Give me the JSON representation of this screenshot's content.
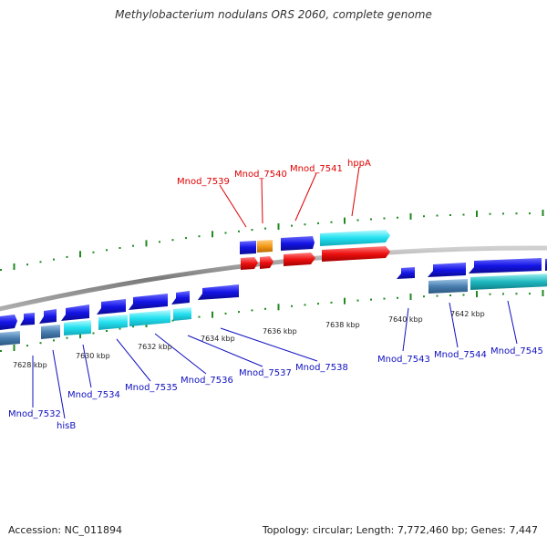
{
  "title": "Methylobacterium nodulans ORS 2060, complete genome",
  "footer": {
    "accession": "Accession: NC_011894",
    "info": "Topology: circular; Length: 7,772,460 bp; Genes: 7,447"
  },
  "colors": {
    "backbone": "#8a8a8a",
    "tick": "#1f8a1f",
    "gene_blue": "#1414e6",
    "gene_cyan": "#23e0f0",
    "gene_steel": "#4a7fb0",
    "gene_red": "#ee1010",
    "gene_orange": "#f59a1a",
    "label_red": "#e00000",
    "label_blue": "#1010c0"
  },
  "kbp_labels": [
    "7628 kbp",
    "7630 kbp",
    "7632 kbp",
    "7634 kbp",
    "7636 kbp",
    "7638 kbp",
    "7640 kbp",
    "7642 kbp"
  ],
  "top_gene_labels": [
    "Mnod_7539",
    "Mnod_7540",
    "Mnod_7541",
    "hppA"
  ],
  "bottom_gene_labels": [
    "Mnod_7532",
    "hisB",
    "Mnod_7534",
    "Mnod_7535",
    "Mnod_7536",
    "Mnod_7537",
    "Mnod_7538",
    "Mnod_7543",
    "Mnod_7544",
    "Mnod_7545"
  ]
}
